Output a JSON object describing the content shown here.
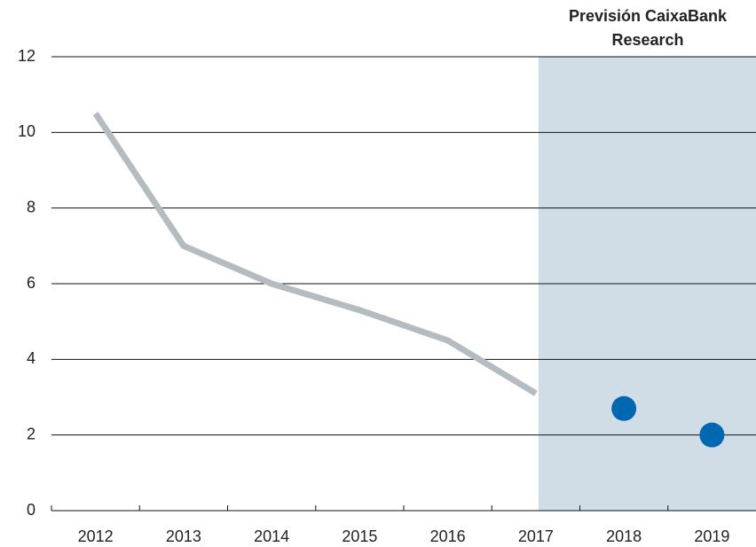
{
  "chart_data": {
    "type": "line",
    "annotation_lines": [
      "Previsión CaixaBank",
      "Research"
    ],
    "categories": [
      "2012",
      "2013",
      "2014",
      "2015",
      "2016",
      "2017",
      "2018",
      "2019"
    ],
    "series": [
      {
        "color": "#b3bcc0",
        "style": "line",
        "values": [
          10.5,
          7.0,
          6.0,
          5.3,
          4.5,
          3.1,
          null,
          null
        ]
      },
      {
        "color": "#0067b1",
        "style": "dots",
        "values": [
          null,
          null,
          null,
          null,
          null,
          null,
          2.7,
          2.0
        ]
      }
    ],
    "forecast_shade_color": "#d1dde6",
    "ylim": [
      0,
      12
    ],
    "yticks": [
      0,
      2,
      4,
      6,
      8,
      10,
      12
    ],
    "grid": true
  }
}
